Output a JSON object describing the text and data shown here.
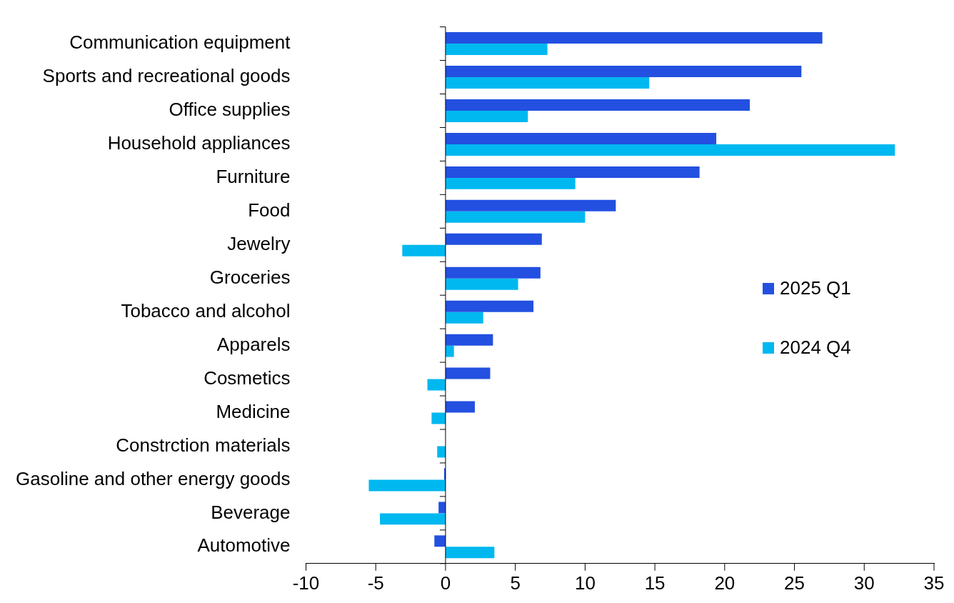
{
  "chart_data": {
    "type": "bar",
    "orientation": "horizontal",
    "categories": [
      "Communication equipment",
      "Sports and recreational goods",
      "Office supplies",
      "Household appliances",
      "Furniture",
      "Food",
      "Jewelry",
      "Groceries",
      "Tobacco and alcohol",
      "Apparels",
      "Cosmetics",
      "Medicine",
      "Constrction materials",
      "Gasoline and other energy goods",
      "Beverage",
      "Automotive"
    ],
    "series": [
      {
        "name": "2025 Q1",
        "color": "#2350e0",
        "values": [
          27.0,
          25.5,
          21.8,
          19.4,
          18.2,
          12.2,
          6.9,
          6.8,
          6.3,
          3.4,
          3.2,
          2.1,
          0,
          -0.1,
          -0.5,
          -0.8
        ]
      },
      {
        "name": "2024 Q4",
        "color": "#00b8f0",
        "values": [
          7.3,
          14.6,
          5.9,
          32.2,
          9.3,
          10.0,
          -3.1,
          5.2,
          2.7,
          0.6,
          -1.3,
          -1.0,
          -0.6,
          -5.5,
          -4.7,
          3.5
        ]
      }
    ],
    "xlim": [
      -10,
      35
    ],
    "xticks": [
      -10,
      -5,
      0,
      5,
      10,
      15,
      20,
      25,
      30,
      35
    ],
    "grid": false,
    "legend": "right",
    "ref_lines": [
      {
        "axis": "x",
        "value": 0,
        "color": "#000000"
      }
    ]
  }
}
